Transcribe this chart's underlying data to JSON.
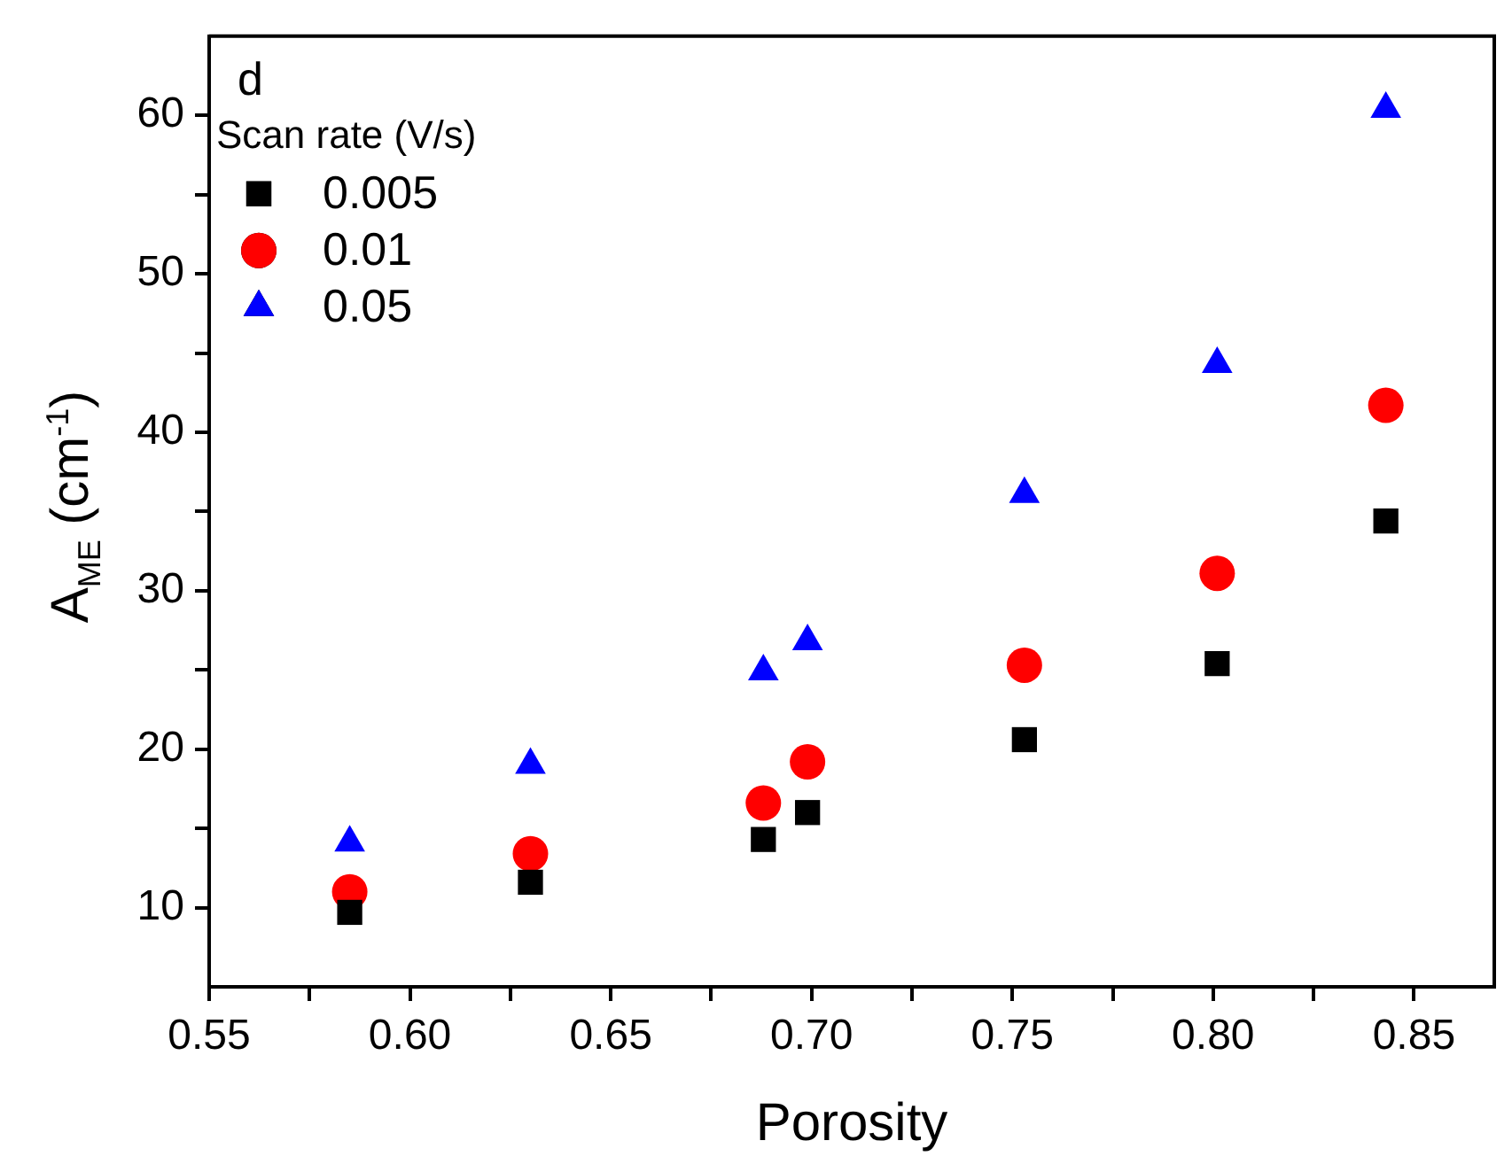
{
  "chart_data": {
    "type": "scatter",
    "xlabel": "Porosity",
    "ylabel": "A$_{ME}$ (cm$^{-1}$)",
    "legend_title": "Scan rate (V/s)",
    "legend": "top left",
    "grid": false,
    "annotations": [
      "d"
    ],
    "xlim": [
      0.55,
      0.87
    ],
    "ylim": [
      5,
      65
    ],
    "xticks": [
      0.55,
      {
        "value": 0.575,
        "label": null
      },
      "0.60",
      {
        "value": 0.625,
        "label": null
      },
      0.65,
      {
        "value": 0.675,
        "label": null
      },
      "0.70",
      {
        "value": 0.725,
        "label": null
      },
      0.75,
      {
        "value": 0.775,
        "label": null
      },
      "0.80",
      {
        "value": 0.825,
        "label": null
      },
      0.85
    ],
    "yticks": [
      10,
      {
        "value": 15,
        "label": null
      },
      20,
      {
        "value": 25,
        "label": null
      },
      30,
      {
        "value": 35,
        "label": null
      },
      40,
      {
        "value": 45,
        "label": null
      },
      50,
      {
        "value": 55,
        "label": null
      },
      60
    ],
    "x": [
      0.585,
      0.63,
      0.688,
      0.699,
      0.753,
      0.801,
      0.843
    ],
    "series": [
      {
        "name": "0.005",
        "color": "#000000",
        "marker": "square",
        "values": [
          9.7,
          11.6,
          14.3,
          16.0,
          20.6,
          25.4,
          34.4
        ]
      },
      {
        "name": "0.01",
        "color": "#ff0000",
        "marker": "circle",
        "values": [
          11.0,
          13.4,
          16.6,
          19.2,
          25.3,
          31.1,
          41.7
        ]
      },
      {
        "name": "0.05",
        "color": "#0000ff",
        "marker": "triangle",
        "values": [
          14.1,
          19.0,
          24.9,
          26.8,
          36.1,
          44.3,
          60.4
        ]
      }
    ]
  }
}
